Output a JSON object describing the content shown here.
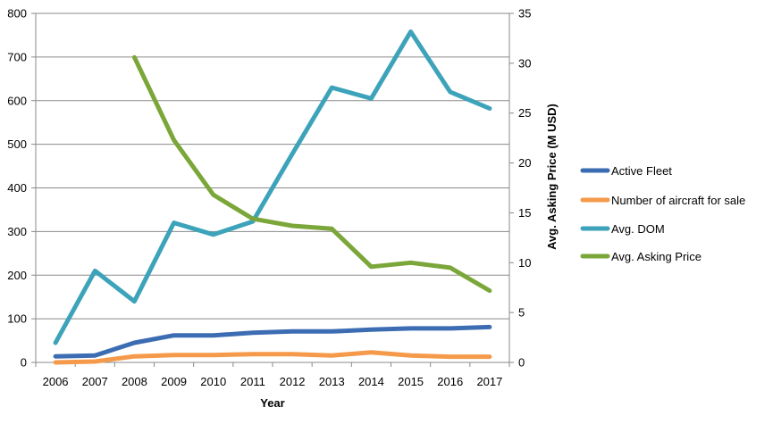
{
  "chart_data": {
    "type": "line",
    "title": "",
    "xlabel": "Year",
    "ylabel": "",
    "y2label": "Avg. Asking Price (M USD)",
    "x": [
      "2006",
      "2007",
      "2008",
      "2009",
      "2010",
      "2011",
      "2012",
      "2013",
      "2014",
      "2015",
      "2016",
      "2017"
    ],
    "ylim": [
      0,
      800
    ],
    "yticks": [
      0,
      100,
      200,
      300,
      400,
      500,
      600,
      700,
      800
    ],
    "y2lim": [
      0,
      35
    ],
    "y2ticks": [
      0,
      5,
      10,
      15,
      20,
      25,
      30,
      35
    ],
    "grid": true,
    "legend_position": "right",
    "series": [
      {
        "name": "Active Fleet",
        "axis": "left",
        "color": "#3c6db3",
        "values": [
          14,
          16,
          45,
          62,
          62,
          68,
          71,
          71,
          75,
          78,
          78,
          81
        ]
      },
      {
        "name": "Number of aircraft for sale",
        "axis": "left",
        "color": "#f59a4a",
        "values": [
          0,
          2,
          14,
          17,
          17,
          19,
          19,
          16,
          23,
          16,
          13,
          13
        ]
      },
      {
        "name": "Avg. DOM",
        "axis": "left",
        "color": "#3da3ba",
        "values": [
          45,
          210,
          140,
          320,
          293,
          323,
          478,
          630,
          605,
          758,
          620,
          582
        ]
      },
      {
        "name": "Avg. Asking Price",
        "axis": "right",
        "color": "#7ba639",
        "values": [
          null,
          null,
          30.6,
          22.3,
          16.8,
          14.4,
          13.7,
          13.4,
          9.6,
          10.0,
          9.5,
          7.2
        ]
      }
    ]
  }
}
